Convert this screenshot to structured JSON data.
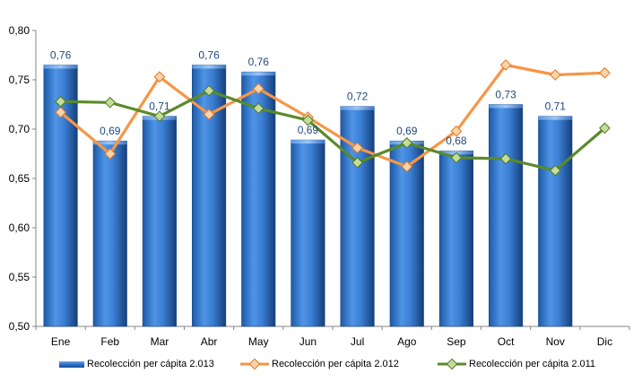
{
  "chart_data": {
    "type": "bar",
    "categories": [
      "Ene",
      "Feb",
      "Mar",
      "Abr",
      "May",
      "Jun",
      "Jul",
      "Ago",
      "Sep",
      "Oct",
      "Nov",
      "Dic"
    ],
    "ylim": [
      0.5,
      0.8
    ],
    "yticks": [
      "0,50",
      "0,55",
      "0,60",
      "0,65",
      "0,70",
      "0,75",
      "0,80"
    ],
    "grid": false,
    "legend_position": "bottom",
    "series": [
      {
        "name": "Recolección per cápita 2.013",
        "kind": "bar",
        "color": "#2e75c9",
        "values": [
          0.765,
          0.688,
          0.713,
          0.765,
          0.758,
          0.689,
          0.723,
          0.688,
          0.678,
          0.725,
          0.713,
          null
        ],
        "labels": [
          "0,76",
          "0,69",
          "0,71",
          "0,76",
          "0,76",
          "0,69",
          "0,72",
          "0,69",
          "0,68",
          "0,73",
          "0,71",
          ""
        ]
      },
      {
        "name": "Recolección per cápita 2.012",
        "kind": "line",
        "color": "#f79646",
        "values": [
          0.717,
          0.675,
          0.753,
          0.715,
          0.741,
          0.712,
          0.681,
          0.662,
          0.698,
          0.765,
          0.755,
          0.757
        ]
      },
      {
        "name": "Recolección per cápita 2.011",
        "kind": "line",
        "color": "#5a8a2a",
        "values": [
          0.728,
          0.727,
          0.713,
          0.739,
          0.721,
          0.709,
          0.666,
          0.686,
          0.671,
          0.67,
          0.658,
          0.701
        ]
      }
    ]
  }
}
